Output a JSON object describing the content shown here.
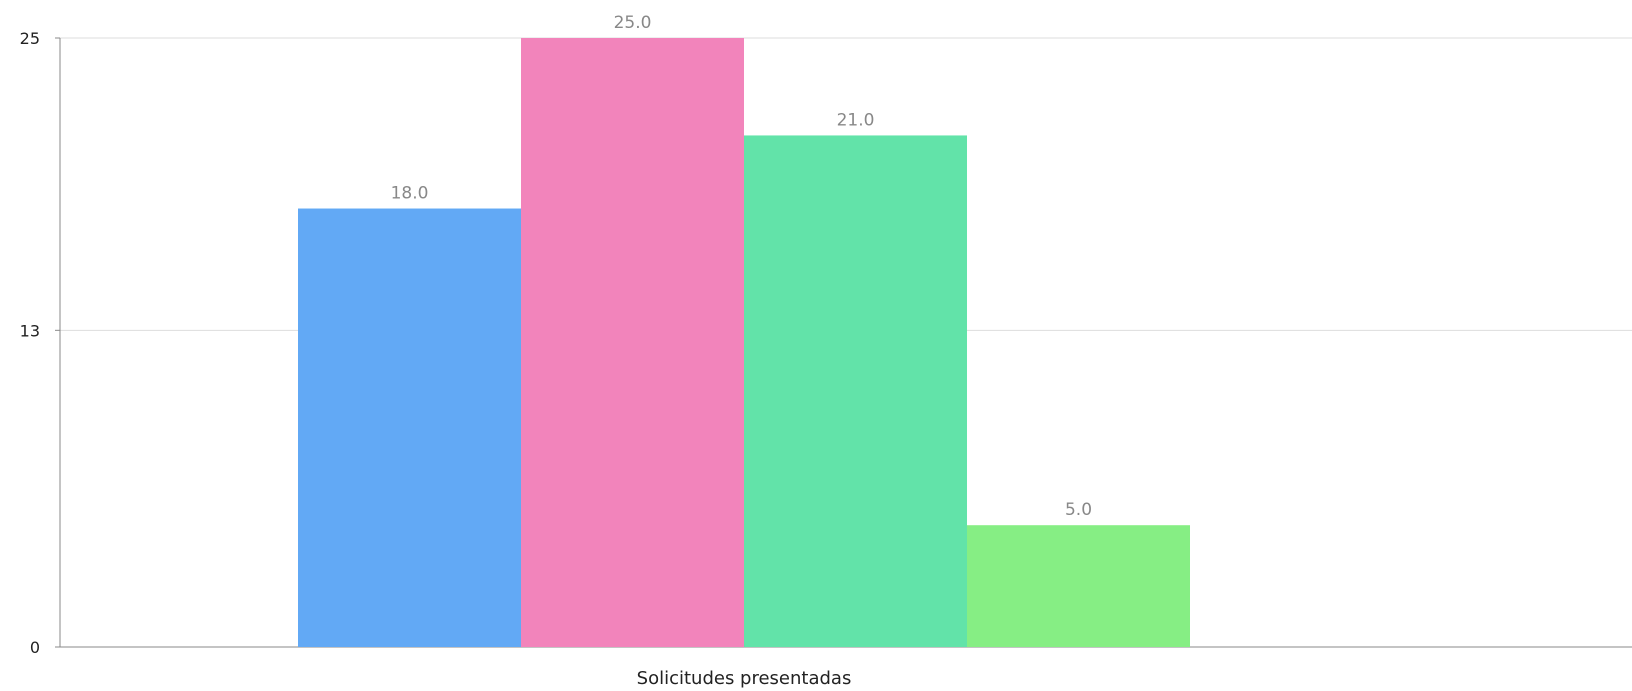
{
  "chart_data": {
    "type": "bar",
    "categories": [
      "Solicitudes presentadas"
    ],
    "series": [
      {
        "values": [
          18.0
        ],
        "label": "18.0",
        "color": "#62a9f5"
      },
      {
        "values": [
          25.0
        ],
        "label": "25.0",
        "color": "#f284bb"
      },
      {
        "values": [
          21.0
        ],
        "label": "21.0",
        "color": "#62e3a9"
      },
      {
        "values": [
          5.0
        ],
        "label": "5.0",
        "color": "#86ee84"
      }
    ],
    "y_ticks": [
      "0",
      "13",
      "25"
    ],
    "ylim": [
      0,
      25
    ],
    "grid": true,
    "legend": "none",
    "colors": {
      "grid": "#dddddd",
      "axis": "#888888",
      "label": "#888888",
      "text": "#222222"
    }
  }
}
